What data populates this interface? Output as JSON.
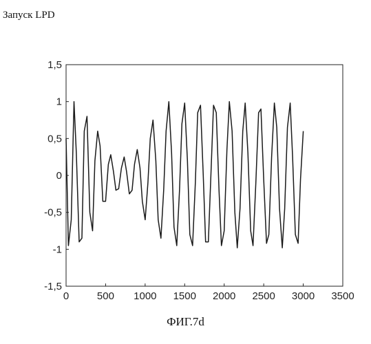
{
  "header": {
    "label": "Запуск LPD"
  },
  "caption": "ФИГ.7d",
  "chart_data": {
    "type": "line",
    "title": "",
    "xlabel": "",
    "ylabel": "",
    "xlim": [
      0,
      3500
    ],
    "ylim": [
      -1.5,
      1.5
    ],
    "x_ticks": [
      0,
      500,
      1000,
      1500,
      2000,
      2500,
      3000,
      3500
    ],
    "x_tick_labels": [
      "0",
      "500",
      "1000",
      "1500",
      "2000",
      "2500",
      "3000",
      "3500"
    ],
    "y_ticks": [
      1.5,
      1,
      0.5,
      0,
      -0.5,
      -1,
      -1.5
    ],
    "y_tick_labels": [
      "1,5",
      "1",
      "0,5",
      "0",
      "-0,5",
      "-1",
      "-1,5"
    ],
    "grid": false,
    "series": [
      {
        "x": [
          0,
          30,
          65,
          100,
          130,
          165,
          200,
          230,
          265,
          300,
          335,
          365,
          400,
          430,
          465,
          500,
          535,
          565,
          600,
          630,
          665,
          700,
          735,
          765,
          800,
          835,
          865,
          900,
          935,
          965,
          1000,
          1035,
          1065,
          1100,
          1135,
          1165,
          1200,
          1235,
          1265,
          1300,
          1335,
          1365,
          1400,
          1435,
          1465,
          1500,
          1535,
          1565,
          1600,
          1635,
          1665,
          1700,
          1735,
          1765,
          1800,
          1835,
          1865,
          1900,
          1935,
          1965,
          2000,
          2035,
          2065,
          2100,
          2135,
          2165,
          2200,
          2235,
          2265,
          2300,
          2335,
          2365,
          2400,
          2435,
          2465,
          2500,
          2535,
          2565,
          2600,
          2635,
          2665,
          2700,
          2735,
          2765,
          2800,
          2835,
          2865,
          2900,
          2935,
          2965,
          3000
        ],
        "y": [
          0.5,
          -0.95,
          -0.6,
          1.0,
          0.3,
          -0.9,
          -0.85,
          0.6,
          0.8,
          -0.5,
          -0.75,
          0.2,
          0.6,
          0.4,
          -0.35,
          -0.35,
          0.15,
          0.28,
          0.05,
          -0.2,
          -0.18,
          0.1,
          0.25,
          0.05,
          -0.25,
          -0.2,
          0.15,
          0.35,
          0.1,
          -0.35,
          -0.6,
          -0.1,
          0.5,
          0.75,
          0.2,
          -0.6,
          -0.85,
          -0.2,
          0.6,
          1.0,
          0.3,
          -0.7,
          -0.95,
          -0.2,
          0.7,
          0.98,
          0.2,
          -0.8,
          -0.95,
          -0.1,
          0.85,
          0.95,
          0.0,
          -0.9,
          -0.9,
          0.1,
          0.95,
          0.85,
          -0.2,
          -0.95,
          -0.75,
          0.35,
          1.0,
          0.6,
          -0.5,
          -0.98,
          -0.45,
          0.6,
          0.98,
          0.3,
          -0.75,
          -0.95,
          -0.1,
          0.85,
          0.9,
          -0.05,
          -0.92,
          -0.8,
          0.25,
          0.98,
          0.65,
          -0.45,
          -0.98,
          -0.45,
          0.65,
          0.98,
          0.25,
          -0.8,
          -0.92,
          -0.05,
          0.6
        ]
      }
    ]
  }
}
